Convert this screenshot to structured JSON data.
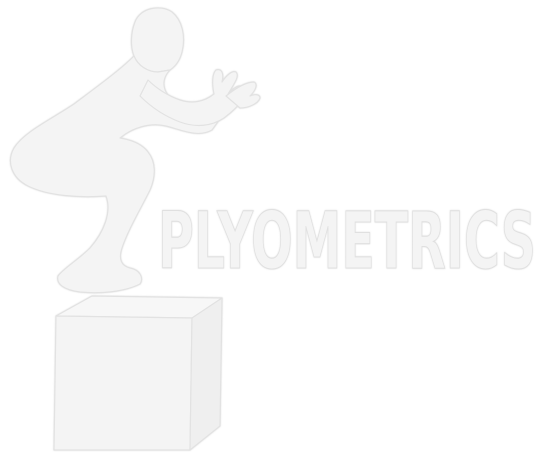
{
  "logo": {
    "wordmark": "PLYOMETRICS",
    "figure_icon": "athlete-box-jump-icon",
    "box_icon": "plyo-box-icon",
    "colors": {
      "background": "#ffffff",
      "fill": "#f4f4f4",
      "outline": "#e6e6e6"
    }
  }
}
